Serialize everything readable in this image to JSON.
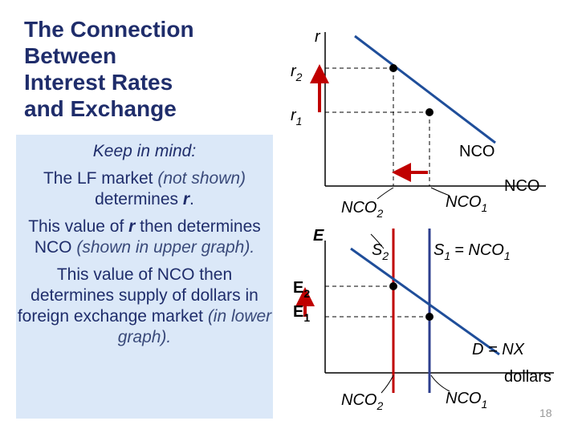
{
  "title": [
    "The Connection",
    "Between",
    "Interest Rates",
    "and Exchange"
  ],
  "note": {
    "heading": "Keep in mind:",
    "paragraphs": [
      [
        "The LF market",
        "(not shown)",
        "determines",
        "r",
        "."
      ],
      [
        "This value of",
        "r",
        "then determines NCO",
        "(shown in upper graph)."
      ],
      [
        "This value of NCO then determines supply of dollars in foreign exchange market",
        "(in lower graph)."
      ]
    ]
  },
  "upper": {
    "y_axis": "r",
    "x_axis": "NCO",
    "curve": "NCO",
    "r2": {
      "base": "r",
      "sub": "2"
    },
    "r1": {
      "base": "r",
      "sub": "1"
    },
    "nco2": {
      "base": "NCO",
      "sub": "2"
    },
    "nco1": {
      "base": "NCO",
      "sub": "1"
    }
  },
  "lower": {
    "y_axis": "E",
    "x_axis": "dollars",
    "s2": {
      "base": "S",
      "sub": "2"
    },
    "s1": {
      "base": "S",
      "sub": "1",
      "rest": "= NCO",
      "sub2": "1"
    },
    "demand": "D = NX",
    "e2": {
      "base": "E",
      "sub": "2"
    },
    "e1": {
      "base": "E",
      "sub": "1"
    },
    "nco2": {
      "base": "NCO",
      "sub": "2"
    },
    "nco1": {
      "base": "NCO",
      "sub": "1"
    }
  },
  "slide_number": "18"
}
